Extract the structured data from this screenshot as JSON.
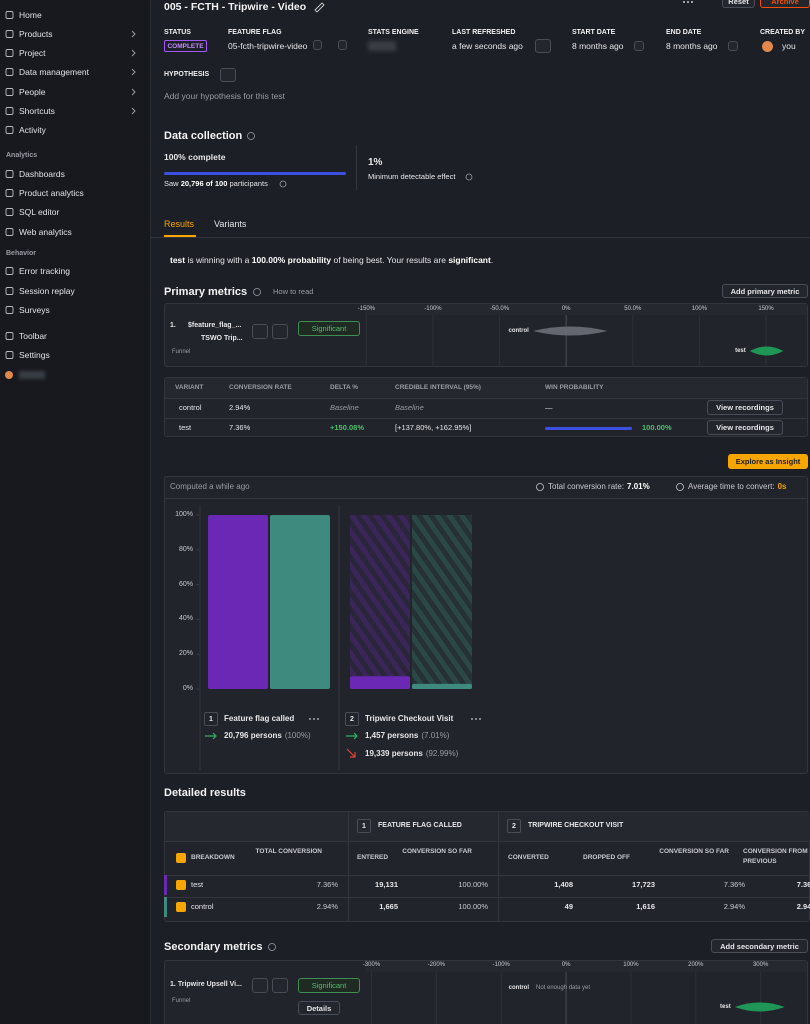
{
  "sidebar": {
    "nav": [
      "Home",
      "Products",
      "Project",
      "Data management",
      "People",
      "Shortcuts",
      "Activity"
    ],
    "sections": [
      {
        "title": "Analytics",
        "items": [
          "Dashboards",
          "Product analytics",
          "SQL editor",
          "Web analytics"
        ]
      },
      {
        "title": "Behavior",
        "items": [
          "Error tracking",
          "Session replay",
          "Surveys"
        ]
      }
    ],
    "footer": [
      "Toolbar",
      "Settings"
    ]
  },
  "header": {
    "title": "005 - FCTH - Tripwire - Video",
    "reset": "Reset",
    "archive": "Archive"
  },
  "info": [
    {
      "label": "STATUS",
      "value": "COMPLETE"
    },
    {
      "label": "FEATURE FLAG",
      "value": "05-fcth-tripwire-video"
    },
    {
      "label": "STATS ENGINE"
    },
    {
      "label": "LAST REFRESHED",
      "value": "a few seconds ago"
    },
    {
      "label": "START DATE",
      "value": "8 months ago"
    },
    {
      "label": "END DATE",
      "value": "8 months ago"
    },
    {
      "label": "CREATED BY",
      "value": "you"
    }
  ],
  "hypothesis": {
    "label": "HYPOTHESIS",
    "placeholder": "Add your hypothesis for this test"
  },
  "data_collection": {
    "title": "Data collection",
    "progress_label": "100% complete",
    "progress": 100,
    "participants": [
      "Saw ",
      "20,796 of 100",
      " participants"
    ],
    "mde": "1%",
    "mde_label": "Minimum detectable effect"
  },
  "tabs": [
    "Results",
    "Variants"
  ],
  "summary": [
    "test",
    " is winning with a ",
    "100.00% probability",
    " of being best. Your results are ",
    "significant",
    "."
  ],
  "primary_metrics": {
    "title": "Primary metrics",
    "how_to_read": "How to read",
    "add": "Add primary metric",
    "xlim": [
      -151,
      181.5
    ],
    "xticks": [
      {
        "value": -150,
        "label": "-150%"
      },
      {
        "value": -100,
        "label": "-100%"
      },
      {
        "value": -50,
        "label": "-50.0%"
      },
      {
        "value": 0,
        "label": "0%"
      },
      {
        "value": 50,
        "label": "50.0%"
      },
      {
        "value": 100,
        "label": "100%"
      },
      {
        "value": 150,
        "label": "150%"
      }
    ],
    "metric": {
      "index": "1.",
      "name": "$feature_flag_...",
      "step": "TSWO Trip...",
      "kind": "Funnel",
      "badge": "Significant"
    },
    "intervals": [
      {
        "variant": "control",
        "lo": -25,
        "hi": 31
      },
      {
        "variant": "test",
        "lo": 137.8,
        "hi": 162.95
      }
    ],
    "table": {
      "headers": [
        "VARIANT",
        "CONVERSION RATE",
        "DELTA %",
        "CREDIBLE INTERVAL (95%)",
        "WIN PROBABILITY"
      ],
      "rows": [
        [
          "control",
          "2.94%",
          "Baseline",
          "Baseline",
          "—"
        ],
        [
          "test",
          "7.36%",
          "+150.08%",
          "[+137.80%, +162.95%]",
          "100.00%"
        ]
      ],
      "test_win_probability": 100,
      "action": "View recordings"
    }
  },
  "explore": "Explore as Insight",
  "funnel": {
    "computed": "Computed a while ago",
    "total_label": "Total conversion rate:",
    "total": "7.01%",
    "avg_label": "Average time to convert:",
    "avg": "0s",
    "chart": {
      "type": "bar",
      "ylim": [
        0,
        100
      ],
      "yticks": [
        {
          "value": 0,
          "label": "0%"
        },
        {
          "value": 20,
          "label": "20%"
        },
        {
          "value": 40,
          "label": "40%"
        },
        {
          "value": 60,
          "label": "60%"
        },
        {
          "value": 80,
          "label": "80%"
        },
        {
          "value": 100,
          "label": "100%"
        }
      ],
      "series": [
        {
          "color": "#6a28b4",
          "values": [
            100,
            7.36
          ]
        },
        {
          "color": "#3e8a7f",
          "values": [
            100,
            2.94
          ]
        }
      ]
    },
    "steps": [
      {
        "number": "1",
        "name": "Feature flag called",
        "rows": [
          {
            "persons": "20,796 persons",
            "share": "(100%)"
          }
        ]
      },
      {
        "number": "2",
        "name": "Tripwire Checkout Visit",
        "rows": [
          {
            "persons": "1,457 persons",
            "share": "(7.01%)"
          },
          {
            "persons": "19,339 persons",
            "share": "(92.99%)"
          }
        ]
      }
    ]
  },
  "detailed": {
    "title": "Detailed results",
    "groups": [
      {
        "number": "1",
        "name": "FEATURE FLAG CALLED"
      },
      {
        "number": "2",
        "name": "TRIPWIRE CHECKOUT VISIT"
      }
    ],
    "columns": [
      "BREAKDOWN",
      "TOTAL CONVERSION",
      "ENTERED",
      "CONVERSION SO FAR",
      "CONVERTED",
      "DROPPED OFF",
      "CONVERSION SO FAR",
      "CONVERSION FROM PREVIOUS"
    ],
    "rows": [
      [
        "test",
        "7.36%",
        "19,131",
        "100.00%",
        "1,408",
        "17,723",
        "7.36%",
        "7.36%"
      ],
      [
        "control",
        "2.94%",
        "1,665",
        "100.00%",
        "49",
        "1,616",
        "2.94%",
        "2.94%"
      ]
    ]
  },
  "secondary_metrics": {
    "title": "Secondary metrics",
    "add": "Add secondary metric",
    "xlim": [
      -310,
      373
    ],
    "xticks": [
      {
        "value": -300,
        "label": "-300%"
      },
      {
        "value": -200,
        "label": "-200%"
      },
      {
        "value": -100,
        "label": "-100%"
      },
      {
        "value": 0,
        "label": "0%"
      },
      {
        "value": 100,
        "label": "100%"
      },
      {
        "value": 200,
        "label": "200%"
      },
      {
        "value": 300,
        "label": "300%"
      }
    ],
    "metric": {
      "index": "1.",
      "name": "Tripwire Upsell Vi...",
      "kind": "Funnel",
      "badge": "Significant",
      "details": "Details"
    },
    "variants": [
      "control",
      "test"
    ],
    "no_data": "Not enough data yet",
    "intervals": [
      {
        "variant": "test",
        "lo": 260,
        "hi": 337
      }
    ]
  }
}
